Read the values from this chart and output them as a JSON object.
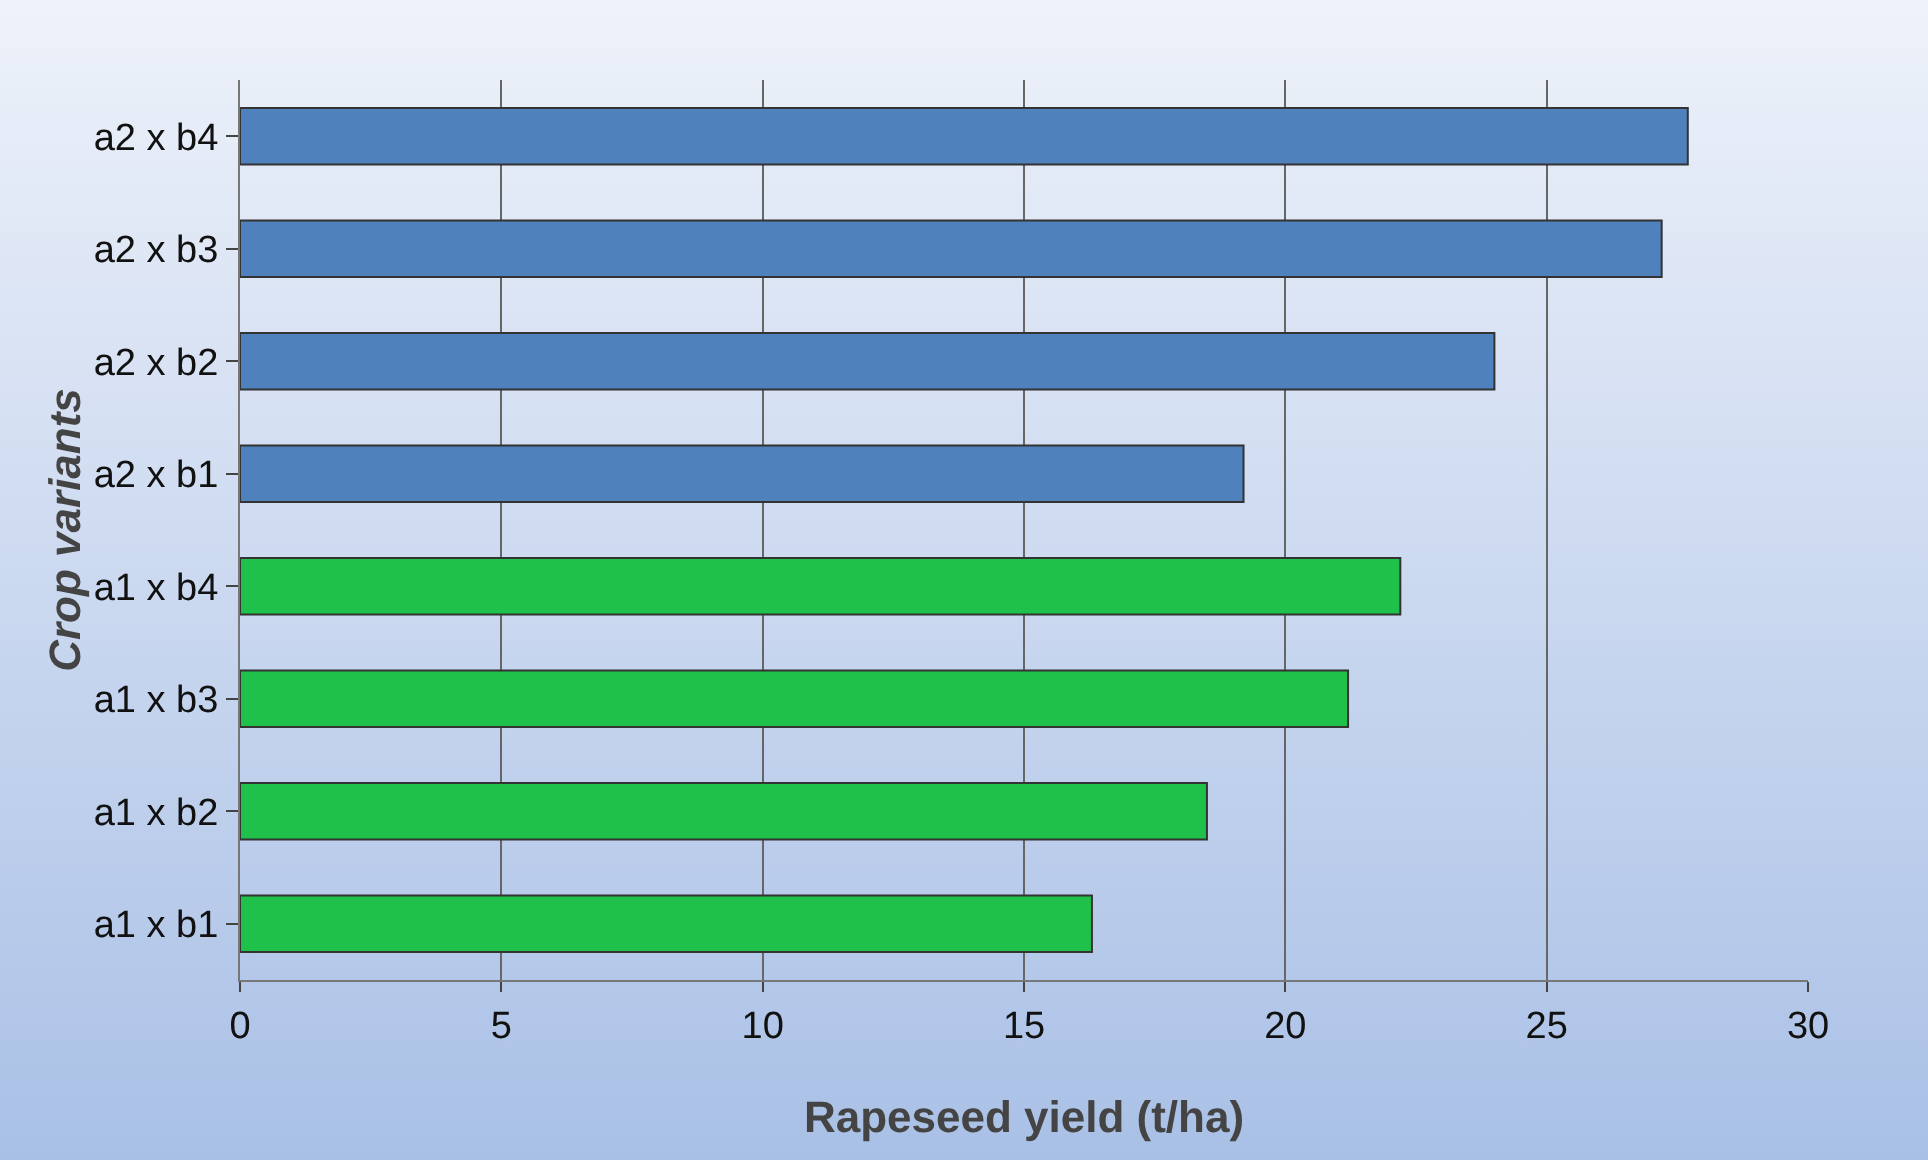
{
  "chart_data": {
    "type": "bar",
    "orientation": "horizontal",
    "categories": [
      "a2 x b4",
      "a2 x b3",
      "a2 x b2",
      "a2 x b1",
      "a1 x b4",
      "a1 x b3",
      "a1 x b2",
      "a1 x b1"
    ],
    "values": [
      27.7,
      27.2,
      24.0,
      19.2,
      22.2,
      21.2,
      18.5,
      16.3
    ],
    "colors": [
      "#4f81bd",
      "#4f81bd",
      "#4f81bd",
      "#4f81bd",
      "#1fc14a",
      "#1fc14a",
      "#1fc14a",
      "#1fc14a"
    ],
    "xlim": [
      0,
      30
    ],
    "xticks": [
      0,
      5,
      10,
      15,
      20,
      25,
      30
    ],
    "xlabel": "Rapeseed yield (t/ha)",
    "ylabel": "Crop variants",
    "grid": "x"
  }
}
